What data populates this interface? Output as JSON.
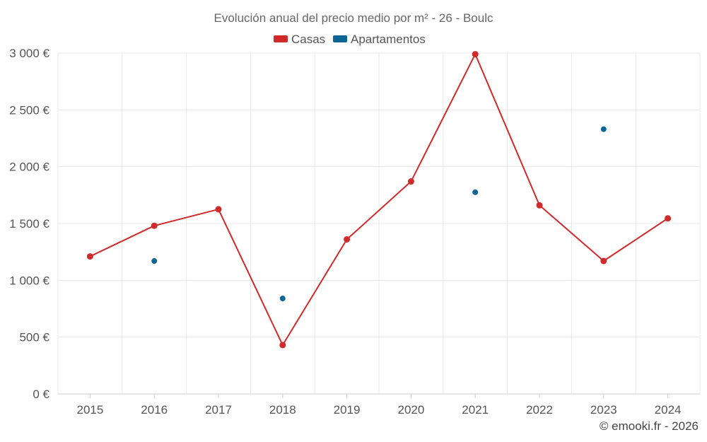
{
  "colors": {
    "casas": "#d12a2a",
    "apartamentos": "#0f6496"
  },
  "credit": "© emooki.fr - 2026",
  "chart_data": {
    "type": "line",
    "title": "Evolución anual del precio medio por m² - 26 - Boulc",
    "categories": [
      "2015",
      "2016",
      "2017",
      "2018",
      "2019",
      "2020",
      "2021",
      "2022",
      "2023",
      "2024"
    ],
    "ylim": [
      0,
      3000
    ],
    "yticks": [
      0,
      500,
      1000,
      1500,
      2000,
      2500,
      3000
    ],
    "ytick_labels": [
      "0 €",
      "500 €",
      "1 000 €",
      "1 500 €",
      "2 000 €",
      "2 500 €",
      "3 000 €"
    ],
    "legend": [
      "Casas",
      "Apartamentos"
    ],
    "legend_position": "top-center",
    "grid": true,
    "series": [
      {
        "name": "Casas",
        "style": "line+markers",
        "values": [
          1210,
          1480,
          1625,
          430,
          1360,
          1870,
          2990,
          1660,
          1170,
          1545
        ]
      },
      {
        "name": "Apartamentos",
        "style": "markers",
        "values": [
          null,
          1170,
          null,
          840,
          null,
          null,
          1775,
          null,
          2330,
          null
        ]
      }
    ]
  }
}
